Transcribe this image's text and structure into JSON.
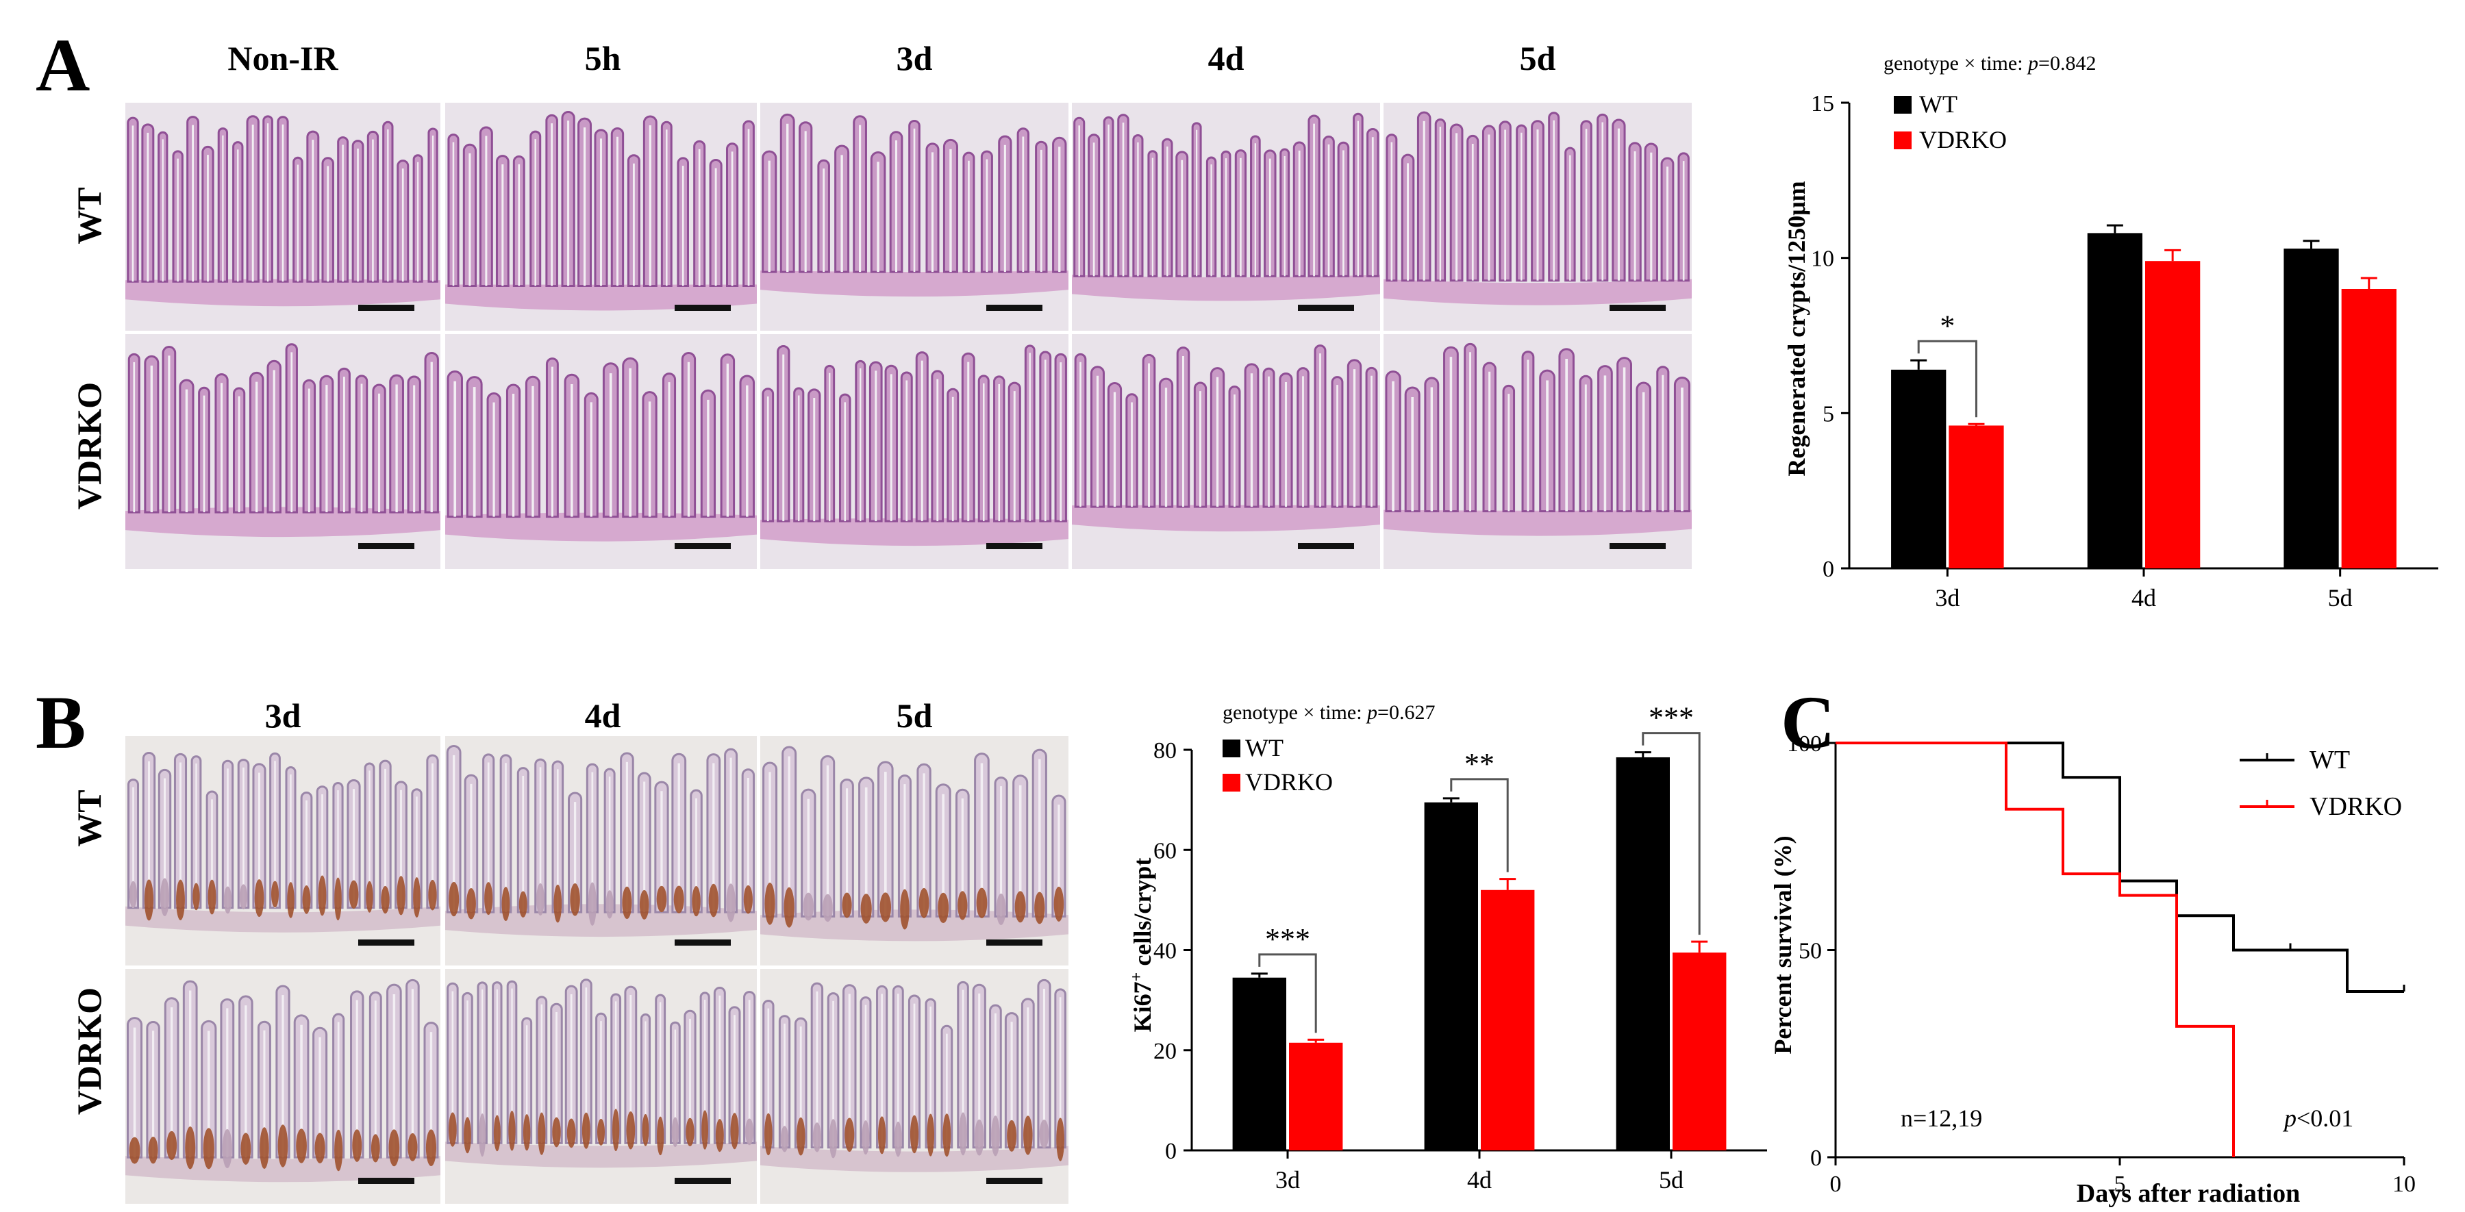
{
  "panels": {
    "A": {
      "letter": "A",
      "columns": [
        "Non-IR",
        "5h",
        "3d",
        "4d",
        "5d"
      ],
      "rows": [
        "WT",
        "VDRKO"
      ]
    },
    "B": {
      "letter": "B",
      "columns": [
        "3d",
        "4d",
        "5d"
      ],
      "rows": [
        "WT",
        "VDRKO"
      ]
    },
    "C": {
      "letter": "C"
    }
  },
  "colors": {
    "wt": "#000000",
    "vdrko": "#ff0000",
    "he_stain": "#c98fc0",
    "ki67_stain": "#a0522d"
  },
  "chart_data": [
    {
      "id": "A-bar",
      "type": "bar",
      "annotation": "genotype × time: p=0.842",
      "annotation_prefix": "genotype × time: ",
      "annotation_p": "p",
      "annotation_val": "=0.842",
      "categories": [
        "3d",
        "4d",
        "5d"
      ],
      "series": [
        {
          "name": "WT",
          "values": [
            6.4,
            10.8,
            10.3
          ],
          "errors": [
            0.3,
            0.25,
            0.25
          ]
        },
        {
          "name": "VDRKO",
          "values": [
            4.6,
            9.9,
            9.0
          ],
          "errors": [
            0.05,
            0.35,
            0.35
          ]
        }
      ],
      "ylabel": "Regenerated crypts/1250μm",
      "ylim": [
        0,
        15
      ],
      "yticks": [
        0,
        5,
        10,
        15
      ],
      "legend": "top-left",
      "significance": [
        {
          "category": "3d",
          "label": "*"
        }
      ]
    },
    {
      "id": "B-bar",
      "type": "bar",
      "annotation": "genotype × time: p=0.627",
      "annotation_prefix": "genotype × time: ",
      "annotation_p": "p",
      "annotation_val": "=0.627",
      "categories": [
        "3d",
        "4d",
        "5d"
      ],
      "series": [
        {
          "name": "WT",
          "values": [
            34.5,
            69.5,
            78.5
          ],
          "errors": [
            0.8,
            0.8,
            1.0
          ]
        },
        {
          "name": "VDRKO",
          "values": [
            21.5,
            52.0,
            39.5
          ],
          "errors": [
            0.6,
            2.2,
            2.2
          ]
        }
      ],
      "ylabel_main": "Ki67",
      "ylabel_sup": "+",
      "ylabel_rest": " cells/crypt",
      "ylim": [
        0,
        80
      ],
      "yticks": [
        0,
        20,
        40,
        60,
        80
      ],
      "legend": "top-left",
      "significance": [
        {
          "category": "3d",
          "label": "***"
        },
        {
          "category": "4d",
          "label": "**"
        },
        {
          "category": "5d",
          "label": "***"
        }
      ]
    },
    {
      "id": "C-survival",
      "type": "line",
      "xlabel": "Days after radiation",
      "ylabel": "Percent survival (%)",
      "xlim": [
        0,
        10
      ],
      "ylim": [
        0,
        100
      ],
      "xticks": [
        0,
        5,
        10
      ],
      "yticks": [
        0,
        50,
        100
      ],
      "series": [
        {
          "name": "WT",
          "steps": [
            [
              0,
              100
            ],
            [
              4,
              100
            ],
            [
              4,
              91.7
            ],
            [
              5,
              91.7
            ],
            [
              5,
              66.7
            ],
            [
              6,
              66.7
            ],
            [
              6,
              58.3
            ],
            [
              7,
              58.3
            ],
            [
              7,
              50
            ],
            [
              9,
              50
            ],
            [
              9,
              40
            ],
            [
              10,
              40
            ]
          ],
          "censored": [
            [
              8,
              50
            ],
            [
              10,
              40
            ]
          ]
        },
        {
          "name": "VDRKO",
          "steps": [
            [
              0,
              100
            ],
            [
              3,
              100
            ],
            [
              3,
              84
            ],
            [
              4,
              84
            ],
            [
              4,
              68.4
            ],
            [
              5,
              68.4
            ],
            [
              5,
              63.2
            ],
            [
              6,
              63.2
            ],
            [
              6,
              31.6
            ],
            [
              7,
              31.6
            ],
            [
              7,
              0
            ]
          ],
          "censored": []
        }
      ],
      "legend": "top-right",
      "n_label": "n=12,19",
      "p_label_p": "p",
      "p_label_val": "<0.01"
    }
  ]
}
